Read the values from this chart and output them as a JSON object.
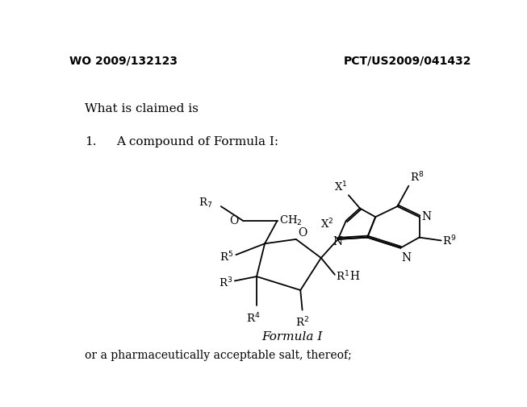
{
  "bg_color": "#ffffff",
  "header_left": "WO 2009/132123",
  "header_right": "PCT/US2009/041432",
  "section_title": "What is claimed is",
  "claim_number": "1.",
  "claim_text": "A compound of Formula I:",
  "formula_label": "Formula I",
  "footer_text": "or a pharmaceutically acceptable salt, thereof;",
  "figsize": [
    6.53,
    5.06
  ],
  "dpi": 100
}
